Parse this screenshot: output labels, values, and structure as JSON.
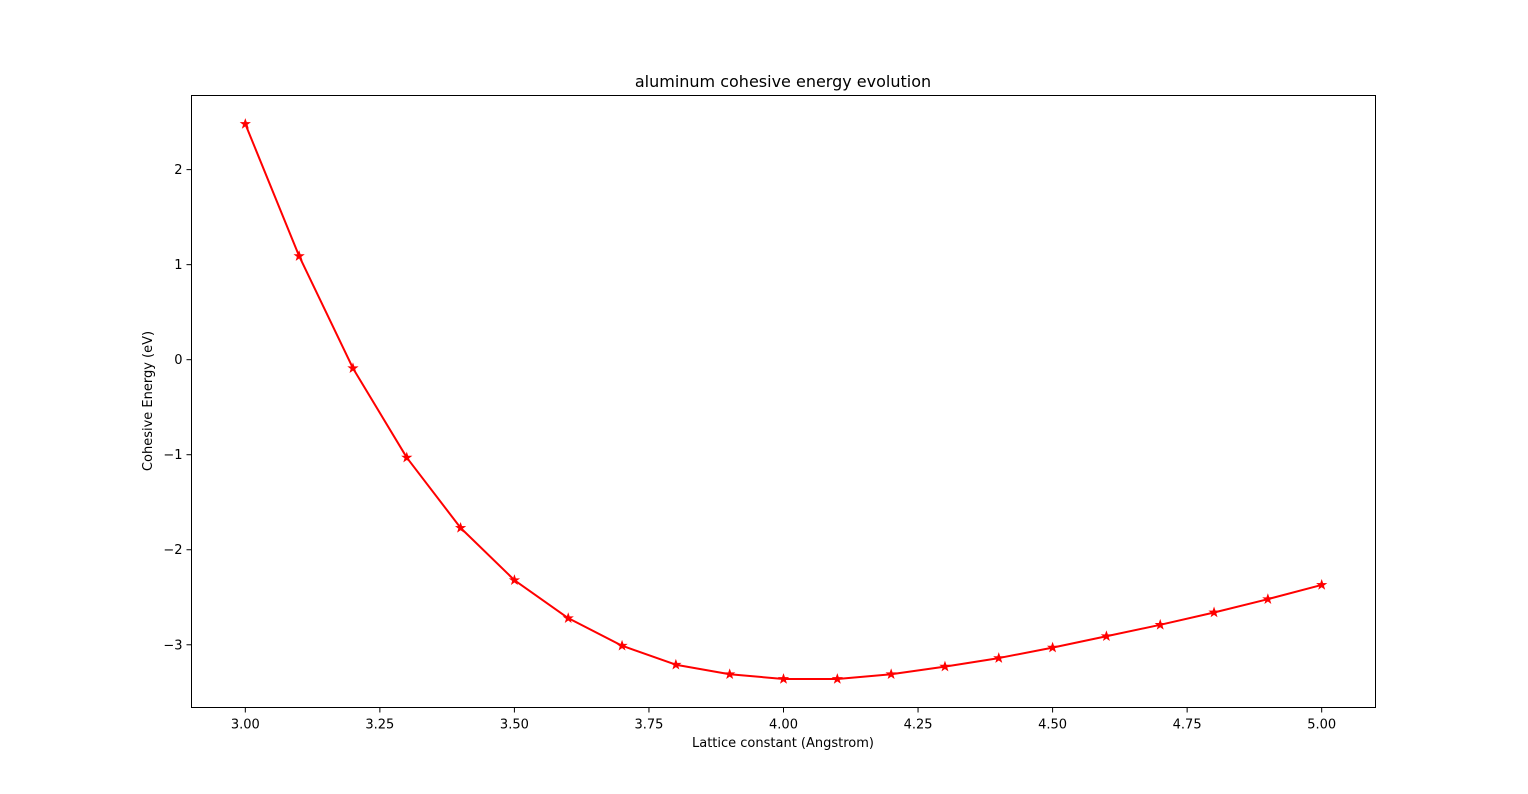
{
  "chart_data": {
    "type": "line",
    "title": "aluminum cohesive energy evolution",
    "xlabel": "Lattice constant (Angstrom)",
    "ylabel": "Cohesive Energy (eV)",
    "xlim": [
      2.9,
      5.1
    ],
    "ylim": [
      -3.66,
      2.78
    ],
    "xticks": [
      3.0,
      3.25,
      3.5,
      3.75,
      4.0,
      4.25,
      4.5,
      4.75,
      5.0
    ],
    "xtick_labels": [
      "3.00",
      "3.25",
      "3.50",
      "3.75",
      "4.00",
      "4.25",
      "4.50",
      "4.75",
      "5.00"
    ],
    "yticks": [
      2,
      1,
      0,
      -1,
      -2,
      -3
    ],
    "ytick_labels": [
      "2",
      "1",
      "0",
      "−1",
      "−2",
      "−3"
    ],
    "grid": false,
    "series": [
      {
        "color": "#ff0000",
        "marker": "star",
        "x": [
          3.0,
          3.1,
          3.2,
          3.3,
          3.4,
          3.5,
          3.6,
          3.7,
          3.8,
          3.9,
          4.0,
          4.1,
          4.2,
          4.3,
          4.4,
          4.5,
          4.6,
          4.7,
          4.8,
          4.9,
          5.0
        ],
        "y": [
          2.48,
          1.09,
          -0.09,
          -1.03,
          -1.77,
          -2.32,
          -2.72,
          -3.01,
          -3.21,
          -3.31,
          -3.36,
          -3.36,
          -3.31,
          -3.23,
          -3.14,
          -3.03,
          -2.91,
          -2.79,
          -2.66,
          -2.52,
          -2.37
        ]
      }
    ]
  }
}
